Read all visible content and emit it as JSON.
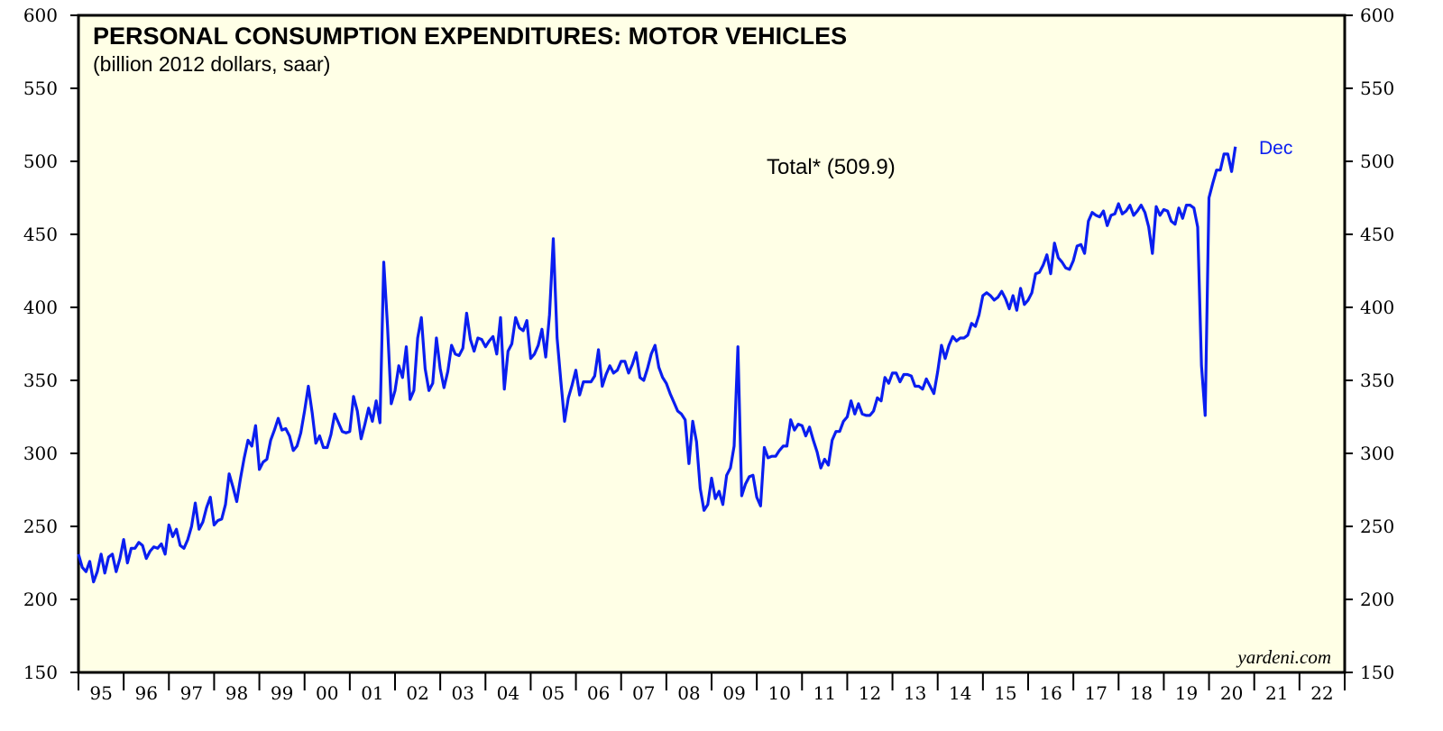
{
  "chart_data": {
    "type": "line",
    "title": "PERSONAL CONSUMPTION EXPENDITURES: MOTOR VEHICLES",
    "subtitle": "(billion 2012 dollars, saar)",
    "annotation": "Total* (509.9)",
    "end_label": "Dec",
    "credit": "yardeni.com",
    "ylim": [
      150,
      600
    ],
    "y_ticks": [
      150,
      200,
      250,
      300,
      350,
      400,
      450,
      500,
      550,
      600
    ],
    "x_range": [
      1995,
      2023
    ],
    "x_tick_labels": [
      "95",
      "96",
      "97",
      "98",
      "99",
      "00",
      "01",
      "02",
      "03",
      "04",
      "05",
      "06",
      "07",
      "08",
      "09",
      "10",
      "11",
      "12",
      "13",
      "14",
      "15",
      "16",
      "17",
      "18",
      "19",
      "20",
      "21",
      "22"
    ],
    "colors": {
      "series": "#0a1ef0",
      "plot_bg": "#ffffe6"
    },
    "series": [
      {
        "name": "Total",
        "start": 1995.0,
        "step": 0.08333,
        "values": [
          231,
          222,
          219,
          226,
          212,
          219,
          231,
          218,
          229,
          231,
          219,
          228,
          241,
          225,
          235,
          235,
          239,
          237,
          228,
          233,
          236,
          235,
          238,
          231,
          251,
          243,
          248,
          237,
          235,
          241,
          250,
          266,
          248,
          253,
          263,
          270,
          251,
          254,
          255,
          265,
          286,
          277,
          267,
          283,
          297,
          309,
          305,
          319,
          289,
          294,
          296,
          309,
          316,
          324,
          316,
          317,
          312,
          302,
          305,
          314,
          329,
          346,
          328,
          307,
          312,
          304,
          304,
          313,
          327,
          321,
          315,
          314,
          315,
          339,
          329,
          310,
          320,
          331,
          322,
          336,
          321,
          431,
          388,
          334,
          343,
          360,
          352,
          373,
          337,
          343,
          379,
          393,
          358,
          343,
          348,
          379,
          358,
          345,
          356,
          374,
          368,
          367,
          372,
          396,
          378,
          370,
          379,
          378,
          373,
          377,
          380,
          368,
          393,
          344,
          370,
          375,
          393,
          386,
          384,
          391,
          365,
          368,
          374,
          385,
          366,
          395,
          447,
          379,
          350,
          322,
          338,
          347,
          357,
          340,
          349,
          349,
          349,
          353,
          371,
          346,
          354,
          360,
          355,
          357,
          363,
          363,
          355,
          361,
          369,
          352,
          350,
          358,
          368,
          374,
          359,
          352,
          348,
          341,
          335,
          329,
          327,
          323,
          293,
          322,
          308,
          276,
          261,
          265,
          283,
          269,
          274,
          265,
          285,
          290,
          305,
          373,
          271,
          279,
          284,
          285,
          270,
          264,
          304,
          297,
          298,
          298,
          302,
          305,
          305,
          323,
          316,
          320,
          319,
          312,
          318,
          309,
          301,
          290,
          296,
          292,
          309,
          315,
          315,
          322,
          325,
          336,
          327,
          334,
          327,
          326,
          326,
          329,
          338,
          336,
          352,
          348,
          355,
          355,
          349,
          354,
          354,
          353,
          346,
          346,
          344,
          351,
          346,
          341,
          356,
          374,
          365,
          374,
          380,
          377,
          379,
          379,
          381,
          389,
          387,
          395,
          408,
          410,
          408,
          405,
          407,
          411,
          406,
          399,
          408,
          398,
          413,
          402,
          405,
          410,
          423,
          424,
          429,
          436,
          423,
          444,
          434,
          431,
          427,
          426,
          432,
          442,
          443,
          437,
          459,
          465,
          463,
          462,
          466,
          456,
          463,
          464,
          471,
          464,
          466,
          470,
          463,
          466,
          470,
          465,
          455,
          437,
          469,
          463,
          467,
          466,
          459,
          457,
          468,
          461,
          470,
          470,
          468,
          455,
          360,
          326,
          475,
          485,
          494,
          494,
          505,
          505,
          493,
          510
        ]
      }
    ]
  }
}
